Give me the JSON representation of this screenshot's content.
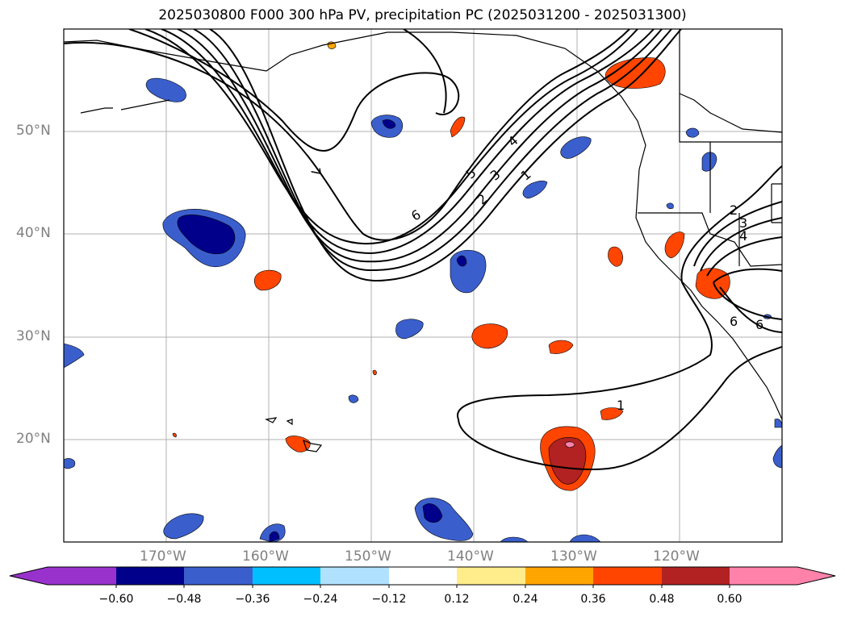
{
  "title": "2025030800 F000 300 hPa PV, precipitation PC (2025031200 - 2025031300)",
  "map": {
    "projection": "PlateCarree",
    "lon_range": [
      -180,
      -110
    ],
    "lat_range": [
      10,
      60
    ],
    "lat_labels": [
      "50°N",
      "40°N",
      "30°N",
      "20°N"
    ],
    "lon_labels": [
      "170°W",
      "160°W",
      "150°W",
      "140°W",
      "130°W",
      "120°W"
    ],
    "contour_labels": [
      "7",
      "6",
      "5",
      "4",
      "3",
      "2",
      "1",
      "1",
      "2",
      "3",
      "4",
      "6",
      "6"
    ]
  },
  "colorbar": {
    "ticks": [
      "−0.60",
      "−0.48",
      "−0.36",
      "−0.24",
      "−0.12",
      "0.12",
      "0.24",
      "0.36",
      "0.48",
      "0.60"
    ],
    "colors": [
      "#9932cc",
      "#00008b",
      "#3a5fcd",
      "#00bfff",
      "#b0e2ff",
      "#ffffff",
      "#ffec8b",
      "#ffa500",
      "#ff4500",
      "#b22222",
      "#ff82ab"
    ]
  }
}
